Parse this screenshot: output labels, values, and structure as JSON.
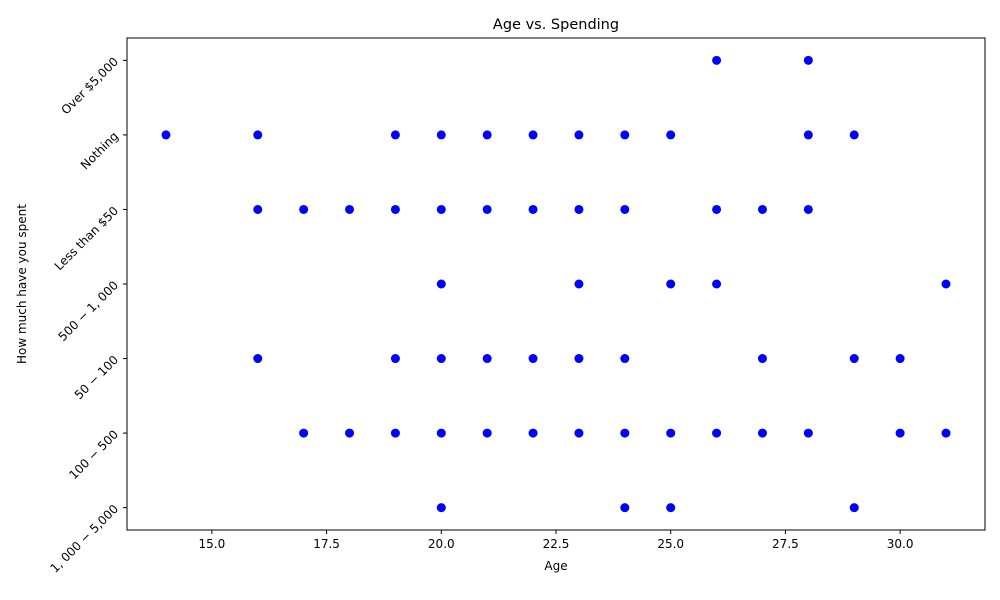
{
  "chart_data": {
    "type": "scatter",
    "title": "Age vs. Spending",
    "xlabel": "Age",
    "ylabel": "How much have you spent",
    "xlim": [
      13.15,
      31.85
    ],
    "x_ticks": [
      "15.0",
      "17.5",
      "20.0",
      "22.5",
      "25.0",
      "27.5",
      "30.0"
    ],
    "x_tick_values": [
      15.0,
      17.5,
      20.0,
      22.5,
      25.0,
      27.5,
      30.0
    ],
    "y_categories": [
      "$1,000-$5,000",
      "$100-$500",
      "$50-$100",
      "$500-$1,000",
      "Less than $50",
      "Nothing",
      "Over $5,000"
    ],
    "y_tick_labels": [
      "1, 000 − 5,000",
      "100 − 500",
      "50 − 100",
      "500 − 1, 000",
      "Less than $50",
      "Nothing",
      "Over $5,000"
    ],
    "grid": false,
    "marker_color": "#0000ff",
    "series": [
      {
        "points": [
          {
            "x": 26,
            "y": "Over $5,000"
          },
          {
            "x": 28,
            "y": "Over $5,000"
          },
          {
            "x": 14,
            "y": "Nothing"
          },
          {
            "x": 16,
            "y": "Nothing"
          },
          {
            "x": 19,
            "y": "Nothing"
          },
          {
            "x": 20,
            "y": "Nothing"
          },
          {
            "x": 21,
            "y": "Nothing"
          },
          {
            "x": 22,
            "y": "Nothing"
          },
          {
            "x": 23,
            "y": "Nothing"
          },
          {
            "x": 24,
            "y": "Nothing"
          },
          {
            "x": 25,
            "y": "Nothing"
          },
          {
            "x": 28,
            "y": "Nothing"
          },
          {
            "x": 29,
            "y": "Nothing"
          },
          {
            "x": 16,
            "y": "Less than $50"
          },
          {
            "x": 17,
            "y": "Less than $50"
          },
          {
            "x": 18,
            "y": "Less than $50"
          },
          {
            "x": 19,
            "y": "Less than $50"
          },
          {
            "x": 20,
            "y": "Less than $50"
          },
          {
            "x": 21,
            "y": "Less than $50"
          },
          {
            "x": 22,
            "y": "Less than $50"
          },
          {
            "x": 23,
            "y": "Less than $50"
          },
          {
            "x": 24,
            "y": "Less than $50"
          },
          {
            "x": 26,
            "y": "Less than $50"
          },
          {
            "x": 27,
            "y": "Less than $50"
          },
          {
            "x": 28,
            "y": "Less than $50"
          },
          {
            "x": 20,
            "y": "$500-$1,000"
          },
          {
            "x": 23,
            "y": "$500-$1,000"
          },
          {
            "x": 25,
            "y": "$500-$1,000"
          },
          {
            "x": 26,
            "y": "$500-$1,000"
          },
          {
            "x": 31,
            "y": "$500-$1,000"
          },
          {
            "x": 16,
            "y": "$50-$100"
          },
          {
            "x": 19,
            "y": "$50-$100"
          },
          {
            "x": 20,
            "y": "$50-$100"
          },
          {
            "x": 21,
            "y": "$50-$100"
          },
          {
            "x": 22,
            "y": "$50-$100"
          },
          {
            "x": 23,
            "y": "$50-$100"
          },
          {
            "x": 24,
            "y": "$50-$100"
          },
          {
            "x": 27,
            "y": "$50-$100"
          },
          {
            "x": 29,
            "y": "$50-$100"
          },
          {
            "x": 30,
            "y": "$50-$100"
          },
          {
            "x": 17,
            "y": "$100-$500"
          },
          {
            "x": 18,
            "y": "$100-$500"
          },
          {
            "x": 19,
            "y": "$100-$500"
          },
          {
            "x": 20,
            "y": "$100-$500"
          },
          {
            "x": 21,
            "y": "$100-$500"
          },
          {
            "x": 22,
            "y": "$100-$500"
          },
          {
            "x": 23,
            "y": "$100-$500"
          },
          {
            "x": 24,
            "y": "$100-$500"
          },
          {
            "x": 25,
            "y": "$100-$500"
          },
          {
            "x": 26,
            "y": "$100-$500"
          },
          {
            "x": 27,
            "y": "$100-$500"
          },
          {
            "x": 28,
            "y": "$100-$500"
          },
          {
            "x": 30,
            "y": "$100-$500"
          },
          {
            "x": 31,
            "y": "$100-$500"
          },
          {
            "x": 20,
            "y": "$1,000-$5,000"
          },
          {
            "x": 24,
            "y": "$1,000-$5,000"
          },
          {
            "x": 25,
            "y": "$1,000-$5,000"
          },
          {
            "x": 29,
            "y": "$1,000-$5,000"
          }
        ]
      }
    ]
  }
}
